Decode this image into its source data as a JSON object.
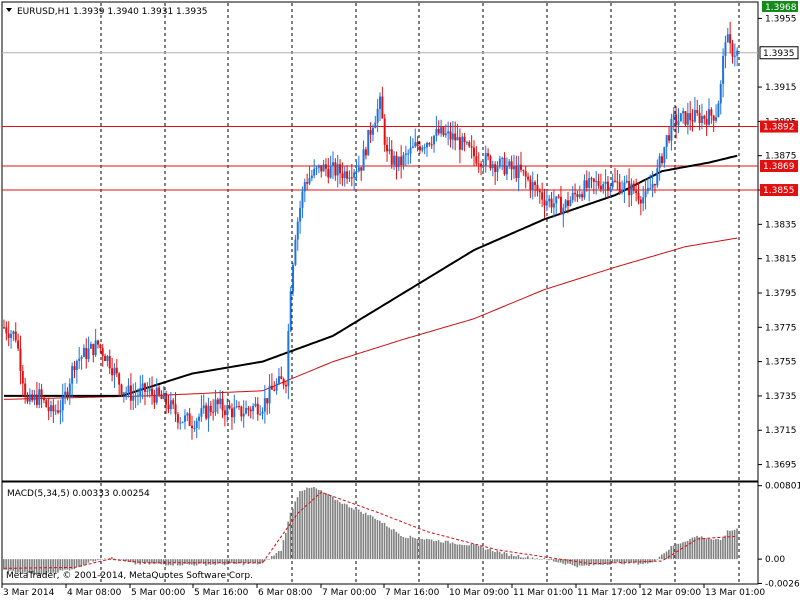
{
  "chart_data": [
    {
      "type": "candlestick",
      "symbol_header": "EURUSD,H1  1.3939 1.3940 1.3931 1.3935",
      "ylim": [
        1.3686,
        1.3964
      ],
      "y_ticks": [
        "1.3955",
        "1.3915",
        "1.3895",
        "1.3875",
        "1.3855",
        "1.3835",
        "1.3815",
        "1.3795",
        "1.3775",
        "1.3755",
        "1.3735",
        "1.3715",
        "1.3695"
      ],
      "x_labels": [
        "3 Mar 2014",
        "4 Mar 08:00",
        "5 Mar 00:00",
        "5 Mar 16:00",
        "6 Mar 08:00",
        "7 Mar 00:00",
        "7 Mar 16:00",
        "10 Mar 09:00",
        "11 Mar 01:00",
        "11 Mar 17:00",
        "12 Mar 09:00",
        "13 Mar 01:00"
      ],
      "current_price": "1.3935",
      "top_marker": "1.3968",
      "horizontal_levels": [
        {
          "label": "1.3892",
          "value": 1.3892
        },
        {
          "label": "1.3869",
          "value": 1.3869
        },
        {
          "label": "1.3855",
          "value": 1.3855
        }
      ],
      "colors": {
        "bull": "#1e73dc",
        "bear": "#e01010",
        "ma_fast": "#000000",
        "ma_slow": "#cc1010",
        "level": "#e01010",
        "price_badge_bg": "#ffffff",
        "marker_bg": "#138a1b"
      },
      "price_anchors": [
        [
          0,
          1.3775
        ],
        [
          5,
          1.377
        ],
        [
          10,
          1.373
        ],
        [
          15,
          1.3735
        ],
        [
          20,
          1.3725
        ],
        [
          25,
          1.373
        ],
        [
          30,
          1.3755
        ],
        [
          35,
          1.376
        ],
        [
          40,
          1.3765
        ],
        [
          45,
          1.3755
        ],
        [
          50,
          1.374
        ],
        [
          55,
          1.3735
        ],
        [
          60,
          1.3738
        ],
        [
          65,
          1.3735
        ],
        [
          70,
          1.373
        ],
        [
          75,
          1.3722
        ],
        [
          80,
          1.372
        ],
        [
          85,
          1.3725
        ],
        [
          90,
          1.373
        ],
        [
          95,
          1.3727
        ],
        [
          100,
          1.3725
        ],
        [
          105,
          1.3728
        ],
        [
          110,
          1.373
        ],
        [
          115,
          1.374
        ],
        [
          120,
          1.3745
        ],
        [
          122,
          1.38
        ],
        [
          124,
          1.383
        ],
        [
          128,
          1.386
        ],
        [
          135,
          1.3868
        ],
        [
          145,
          1.3865
        ],
        [
          152,
          1.387
        ],
        [
          157,
          1.3895
        ],
        [
          160,
          1.3905
        ],
        [
          163,
          1.3875
        ],
        [
          168,
          1.387
        ],
        [
          175,
          1.388
        ],
        [
          185,
          1.3888
        ],
        [
          192,
          1.3885
        ],
        [
          200,
          1.3875
        ],
        [
          210,
          1.387
        ],
        [
          220,
          1.3865
        ],
        [
          230,
          1.385
        ],
        [
          238,
          1.3845
        ],
        [
          245,
          1.3855
        ],
        [
          255,
          1.386
        ],
        [
          262,
          1.3858
        ],
        [
          268,
          1.3855
        ],
        [
          273,
          1.385
        ],
        [
          278,
          1.3865
        ],
        [
          282,
          1.3885
        ],
        [
          285,
          1.3895
        ],
        [
          290,
          1.3897
        ],
        [
          300,
          1.3898
        ],
        [
          303,
          1.39
        ],
        [
          305,
          1.3915
        ],
        [
          307,
          1.3945
        ],
        [
          309,
          1.3937
        ],
        [
          312,
          1.3935
        ]
      ],
      "ma_fast_anchors": [
        [
          0,
          1.3735
        ],
        [
          50,
          1.3735
        ],
        [
          80,
          1.3748
        ],
        [
          110,
          1.3755
        ],
        [
          140,
          1.377
        ],
        [
          170,
          1.3795
        ],
        [
          200,
          1.382
        ],
        [
          230,
          1.3838
        ],
        [
          260,
          1.3852
        ],
        [
          280,
          1.3866
        ],
        [
          300,
          1.3871
        ],
        [
          312,
          1.3875
        ]
      ],
      "ma_slow_anchors": [
        [
          0,
          1.3733
        ],
        [
          60,
          1.3735
        ],
        [
          110,
          1.3738
        ],
        [
          140,
          1.3755
        ],
        [
          170,
          1.3768
        ],
        [
          200,
          1.378
        ],
        [
          230,
          1.3797
        ],
        [
          260,
          1.381
        ],
        [
          290,
          1.3822
        ],
        [
          312,
          1.3827
        ]
      ]
    },
    {
      "type": "bar",
      "title": "MACD(5,34,5) 0.00333 0.00254",
      "ylim": [
        -0.0026,
        0.0083
      ],
      "y_ticks": [
        "0.00801",
        "0.00",
        "-0.00265"
      ],
      "copyright": "MetaTrader, © 2001-2014, MetaQuotes Software Corp.",
      "macd_anchors": [
        [
          0,
          -0.0012
        ],
        [
          15,
          -0.0018
        ],
        [
          30,
          -0.001
        ],
        [
          40,
          0.0
        ],
        [
          45,
          0.0002
        ],
        [
          55,
          -0.0005
        ],
        [
          80,
          -0.0006
        ],
        [
          110,
          -0.0005
        ],
        [
          118,
          0.001
        ],
        [
          122,
          0.005
        ],
        [
          126,
          0.0075
        ],
        [
          132,
          0.0078
        ],
        [
          145,
          0.006
        ],
        [
          158,
          0.0045
        ],
        [
          170,
          0.0025
        ],
        [
          185,
          0.002
        ],
        [
          200,
          0.0015
        ],
        [
          215,
          0.0005
        ],
        [
          230,
          0.0
        ],
        [
          245,
          -0.0008
        ],
        [
          260,
          -0.0004
        ],
        [
          275,
          -0.0005
        ],
        [
          285,
          0.0015
        ],
        [
          295,
          0.0025
        ],
        [
          305,
          0.002
        ],
        [
          308,
          0.003
        ],
        [
          312,
          0.0033
        ]
      ],
      "signal_anchors": [
        [
          0,
          -0.001
        ],
        [
          30,
          -0.0009
        ],
        [
          45,
          0.0
        ],
        [
          60,
          -0.0004
        ],
        [
          110,
          -0.0004
        ],
        [
          125,
          0.005
        ],
        [
          135,
          0.0073
        ],
        [
          160,
          0.005
        ],
        [
          180,
          0.003
        ],
        [
          210,
          0.001
        ],
        [
          250,
          -0.0005
        ],
        [
          280,
          -0.0002
        ],
        [
          295,
          0.0022
        ],
        [
          312,
          0.0025
        ]
      ]
    }
  ]
}
